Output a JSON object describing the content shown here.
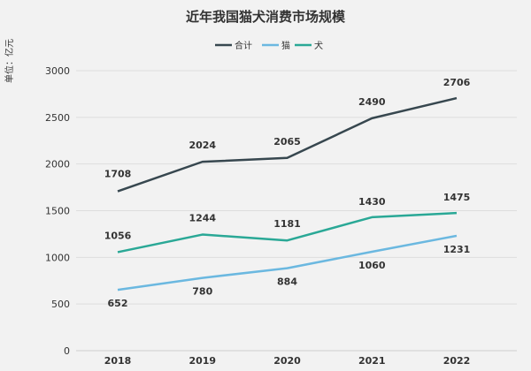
{
  "chart_data": {
    "type": "line",
    "title": "近年我国猫犬消费市场规模",
    "ylabel": "单位：亿元",
    "xlabel": "",
    "categories": [
      "2018",
      "2019",
      "2020",
      "2021",
      "2022"
    ],
    "ylim": [
      0,
      3000
    ],
    "yticks": [
      "0",
      "500",
      "1000",
      "1500",
      "2000",
      "2500",
      "3000"
    ],
    "grid": true,
    "legend_position": "top-center",
    "series": [
      {
        "name": "合计",
        "color": "#37474f",
        "values": [
          1708,
          2024,
          2065,
          2490,
          2706
        ]
      },
      {
        "name": "猫",
        "color": "#6bb8e0",
        "values": [
          652,
          780,
          884,
          1060,
          1231
        ]
      },
      {
        "name": "犬",
        "color": "#2aa896",
        "values": [
          1056,
          1244,
          1181,
          1430,
          1475
        ]
      }
    ]
  }
}
